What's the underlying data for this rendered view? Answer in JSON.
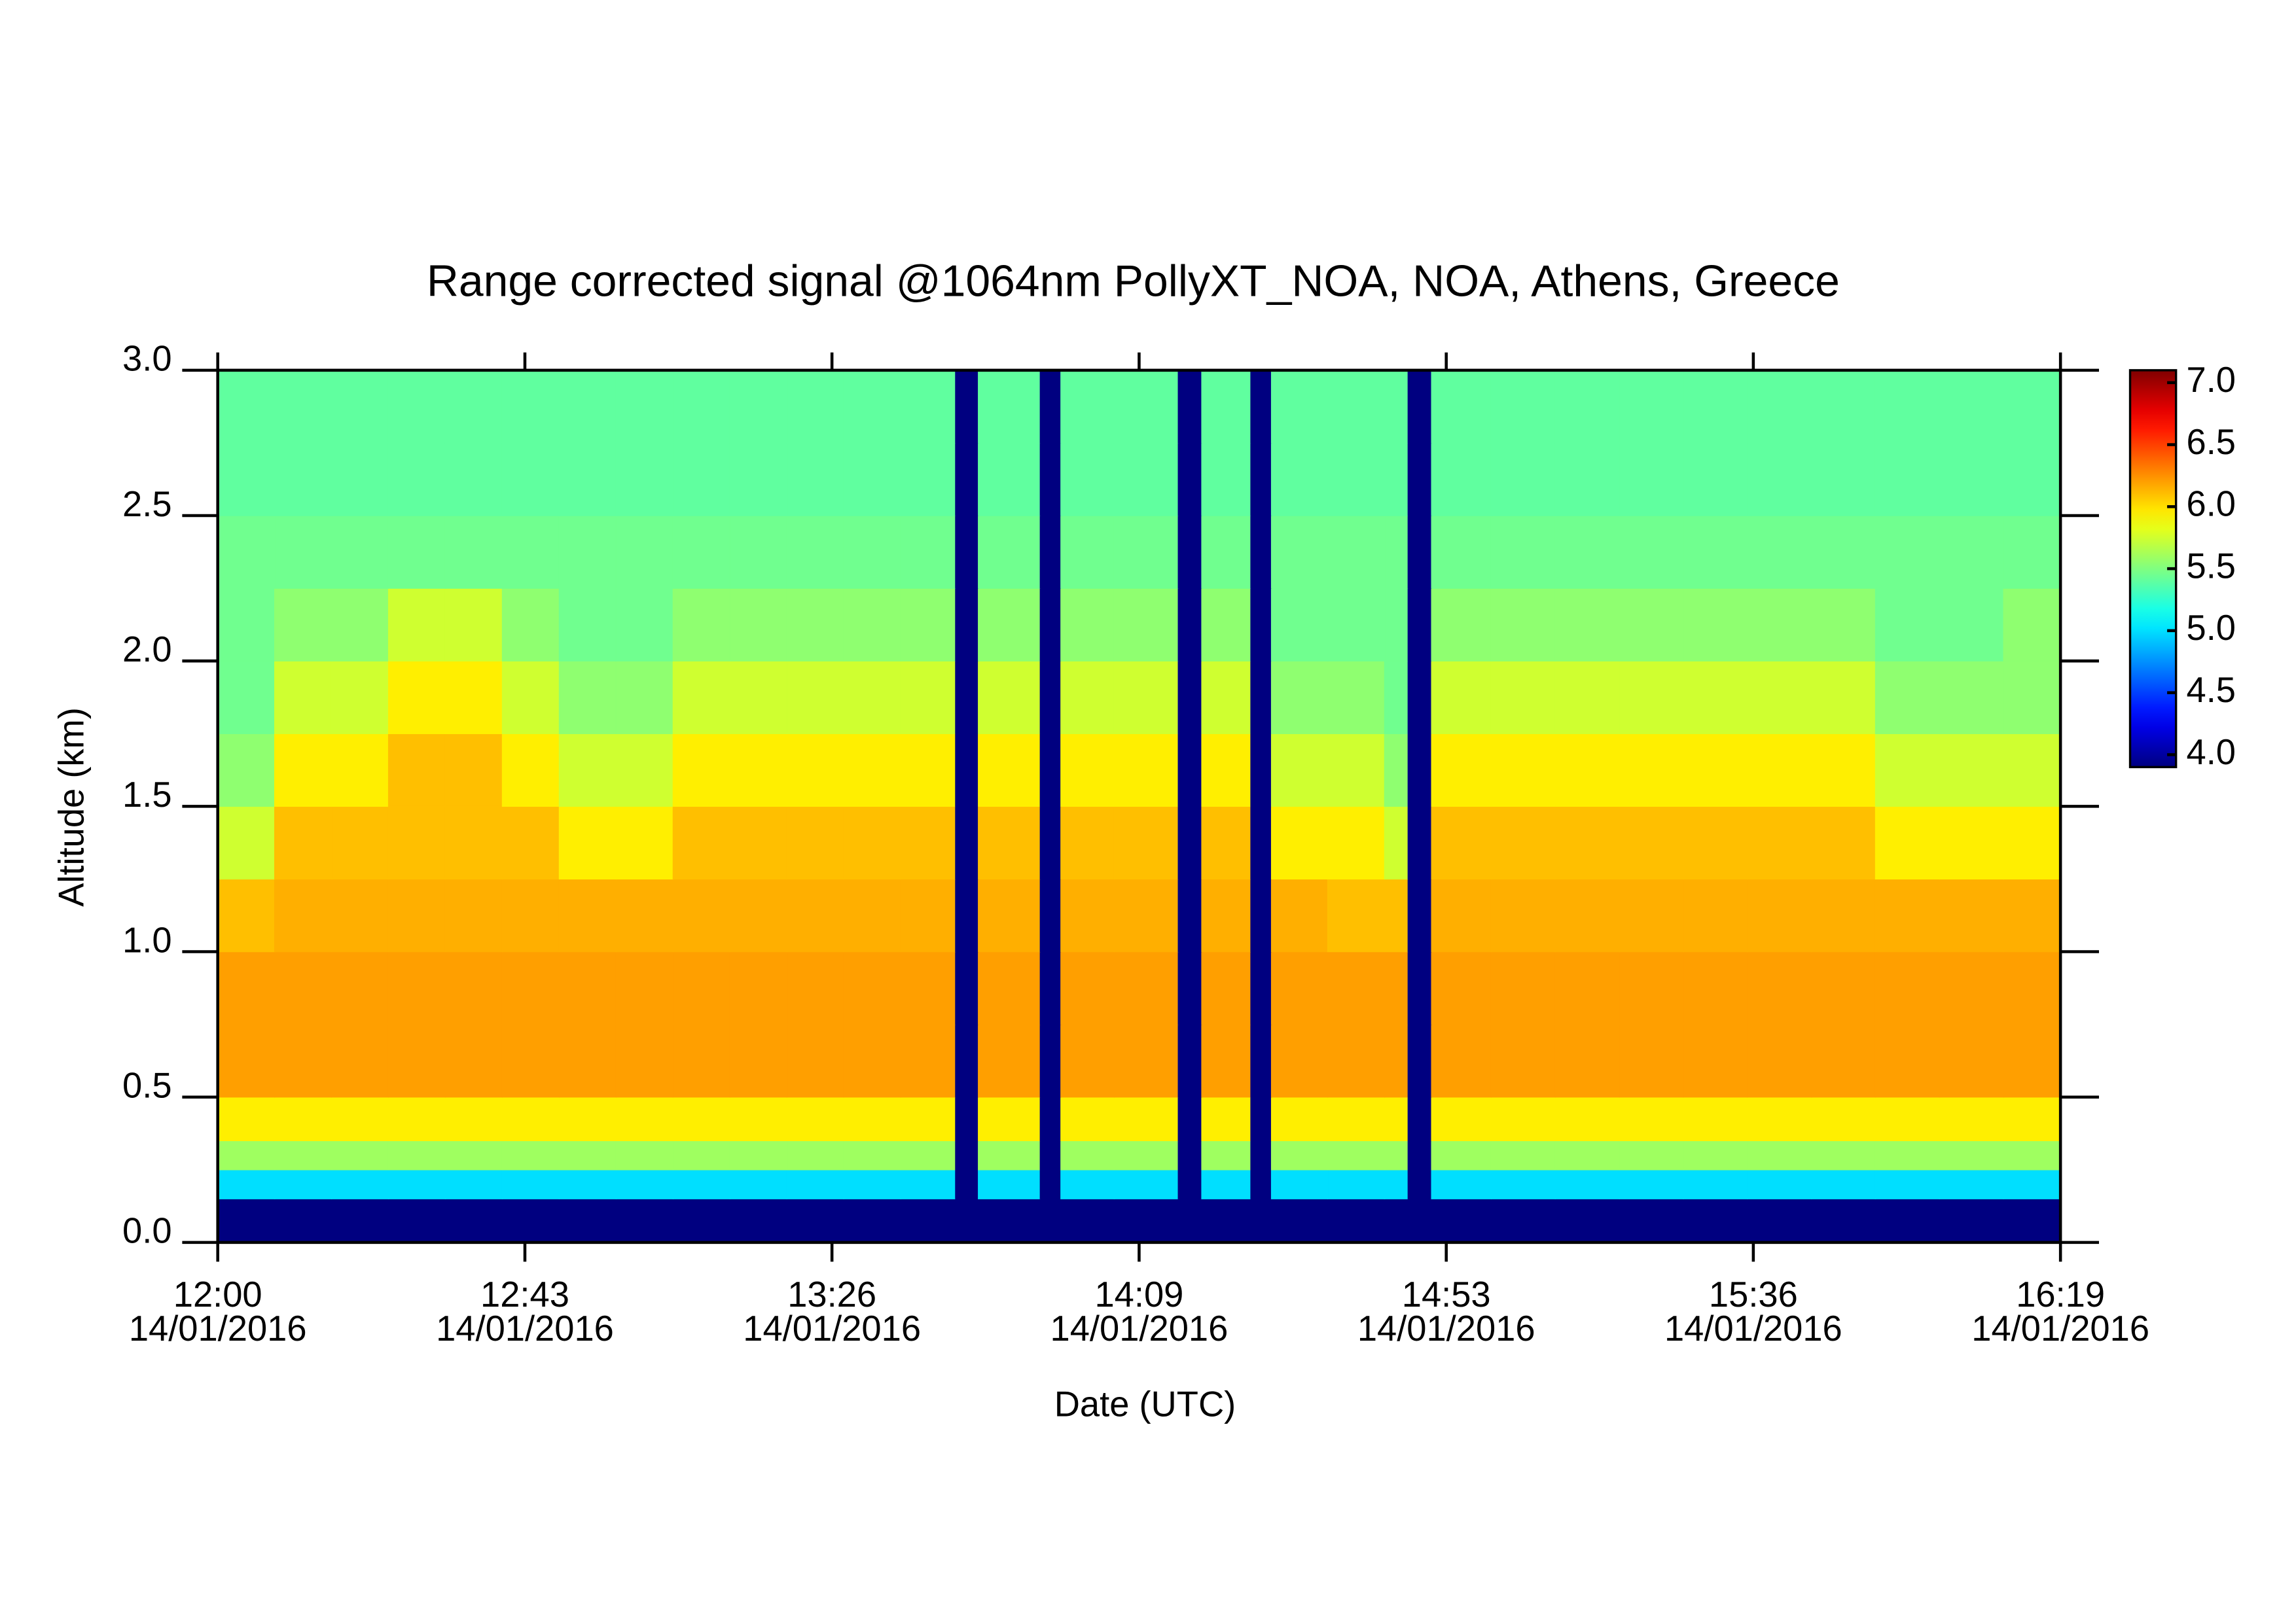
{
  "chart_data": {
    "type": "heatmap",
    "title": "Range corrected signal @1064nm  PollyXT_NOA, NOA, Athens, Greece",
    "xlabel": "Date (UTC)",
    "ylabel": "Altitude (km)",
    "colormap": "jet",
    "xlim": [
      0,
      259
    ],
    "ylim": [
      0,
      3.0
    ],
    "zlim": [
      3.9,
      7.1
    ],
    "xticks": [
      {
        "value": 0,
        "label": [
          "12:00",
          "14/01/2016"
        ]
      },
      {
        "value": 43.17,
        "label": [
          "12:43",
          "14/01/2016"
        ]
      },
      {
        "value": 86.33,
        "label": [
          "13:26",
          "14/01/2016"
        ]
      },
      {
        "value": 129.5,
        "label": [
          "14:09",
          "14/01/2016"
        ]
      },
      {
        "value": 172.67,
        "label": [
          "14:53",
          "14/01/2016"
        ]
      },
      {
        "value": 215.83,
        "label": [
          "15:36",
          "14/01/2016"
        ]
      },
      {
        "value": 259,
        "label": [
          "16:19",
          "14/01/2016"
        ]
      }
    ],
    "yticks": [
      {
        "value": 0,
        "label": "0.0"
      },
      0.5,
      {
        "value": 1,
        "label": "1.0"
      },
      1.5,
      {
        "value": 2,
        "label": "2.0"
      },
      2.5,
      {
        "value": 3,
        "label": "3.0"
      }
    ],
    "zticks": [
      {
        "value": 4,
        "label": "4.0"
      },
      4.5,
      {
        "value": 5,
        "label": "5.0"
      },
      5.5,
      {
        "value": 6,
        "label": "6.0"
      },
      6.5,
      {
        "value": 7,
        "label": "7.0"
      }
    ],
    "x_edges": [
      0,
      8,
      16,
      24,
      32,
      40,
      48,
      56,
      64,
      72,
      80,
      88,
      96,
      103.7,
      106.9,
      115.6,
      118.5,
      126,
      135,
      138.3,
      145.2,
      148.1,
      156,
      164,
      167.3,
      170.6,
      179,
      188,
      197,
      206,
      215,
      224,
      233,
      242,
      251,
      259
    ],
    "y_edges": [
      0,
      0.15,
      0.25,
      0.35,
      0.5,
      0.75,
      1.0,
      1.25,
      1.5,
      1.75,
      2.0,
      2.25,
      2.5,
      2.75,
      3.0
    ],
    "z": [
      [
        3.9,
        3.9,
        3.9,
        3.9,
        3.9,
        3.9,
        3.9,
        3.9,
        3.9,
        3.9,
        3.9,
        3.9,
        3.9,
        3.9,
        3.9,
        3.9,
        3.9,
        3.9,
        3.9,
        3.9,
        3.9,
        3.9,
        3.9,
        3.9,
        3.9,
        3.9,
        3.9,
        3.9,
        3.9,
        3.9,
        3.9,
        3.9,
        3.9,
        3.9,
        3.9
      ],
      [
        5.0,
        5.0,
        5.0,
        5.0,
        5.0,
        5.0,
        5.0,
        5.0,
        5.0,
        5.0,
        5.0,
        5.0,
        5.0,
        3.9,
        5.0,
        3.9,
        5.0,
        5.0,
        3.9,
        5.0,
        3.9,
        5.0,
        5.0,
        5.0,
        3.9,
        5.0,
        5.0,
        5.0,
        5.0,
        5.0,
        5.0,
        5.0,
        5.0,
        5.0,
        5.0
      ],
      [
        5.6,
        5.6,
        5.6,
        5.6,
        5.6,
        5.6,
        5.6,
        5.6,
        5.6,
        5.6,
        5.6,
        5.6,
        5.6,
        3.9,
        5.6,
        3.9,
        5.6,
        5.6,
        3.9,
        5.6,
        3.9,
        5.6,
        5.6,
        5.6,
        3.9,
        5.6,
        5.6,
        5.6,
        5.6,
        5.6,
        5.6,
        5.6,
        5.6,
        5.6,
        5.6
      ],
      [
        5.95,
        5.95,
        5.95,
        5.95,
        5.95,
        5.95,
        5.95,
        5.95,
        5.95,
        5.95,
        5.95,
        5.95,
        5.95,
        3.9,
        5.95,
        3.9,
        5.95,
        5.95,
        3.9,
        5.95,
        3.9,
        5.95,
        5.95,
        5.95,
        3.9,
        5.95,
        5.95,
        5.95,
        5.95,
        5.95,
        5.95,
        5.95,
        5.95,
        5.95,
        5.95
      ],
      [
        6.2,
        6.2,
        6.2,
        6.2,
        6.2,
        6.2,
        6.2,
        6.2,
        6.2,
        6.2,
        6.2,
        6.2,
        6.2,
        3.9,
        6.2,
        3.9,
        6.2,
        6.2,
        3.9,
        6.2,
        3.9,
        6.2,
        6.2,
        6.2,
        3.9,
        6.2,
        6.2,
        6.2,
        6.2,
        6.2,
        6.2,
        6.2,
        6.2,
        6.2,
        6.2
      ],
      [
        6.2,
        6.2,
        6.2,
        6.2,
        6.2,
        6.2,
        6.2,
        6.2,
        6.2,
        6.2,
        6.2,
        6.2,
        6.2,
        3.9,
        6.2,
        3.9,
        6.2,
        6.2,
        3.9,
        6.2,
        3.9,
        6.2,
        6.2,
        6.2,
        3.9,
        6.2,
        6.2,
        6.2,
        6.2,
        6.2,
        6.2,
        6.2,
        6.2,
        6.2,
        6.2
      ],
      [
        6.1,
        6.15,
        6.15,
        6.15,
        6.15,
        6.15,
        6.15,
        6.15,
        6.15,
        6.15,
        6.15,
        6.15,
        6.15,
        3.9,
        6.15,
        3.9,
        6.15,
        6.15,
        3.9,
        6.15,
        3.9,
        6.15,
        6.1,
        6.1,
        3.9,
        6.15,
        6.15,
        6.15,
        6.15,
        6.15,
        6.15,
        6.15,
        6.15,
        6.15,
        6.15
      ],
      [
        5.75,
        6.1,
        6.1,
        6.1,
        6.1,
        6.1,
        5.95,
        5.95,
        6.1,
        6.1,
        6.1,
        6.1,
        6.1,
        3.9,
        6.1,
        3.9,
        6.1,
        6.1,
        3.9,
        6.1,
        3.9,
        5.95,
        5.95,
        5.75,
        3.9,
        6.1,
        6.1,
        6.1,
        6.1,
        6.1,
        6.1,
        6.1,
        5.95,
        5.95,
        5.95
      ],
      [
        5.55,
        5.95,
        5.95,
        6.1,
        6.1,
        5.95,
        5.75,
        5.75,
        5.95,
        5.95,
        5.95,
        5.95,
        5.95,
        3.9,
        5.95,
        3.9,
        5.95,
        5.95,
        3.9,
        5.95,
        3.9,
        5.75,
        5.75,
        5.55,
        3.9,
        5.95,
        5.95,
        5.95,
        5.95,
        5.95,
        5.95,
        5.95,
        5.75,
        5.75,
        5.75
      ],
      [
        5.45,
        5.75,
        5.75,
        5.95,
        5.95,
        5.75,
        5.55,
        5.55,
        5.75,
        5.75,
        5.75,
        5.75,
        5.75,
        3.9,
        5.75,
        3.9,
        5.75,
        5.75,
        3.9,
        5.75,
        3.9,
        5.55,
        5.55,
        5.45,
        3.9,
        5.75,
        5.75,
        5.75,
        5.75,
        5.75,
        5.75,
        5.75,
        5.55,
        5.55,
        5.55
      ],
      [
        5.45,
        5.55,
        5.55,
        5.75,
        5.75,
        5.55,
        5.45,
        5.45,
        5.55,
        5.55,
        5.55,
        5.55,
        5.55,
        3.9,
        5.55,
        3.9,
        5.55,
        5.55,
        3.9,
        5.55,
        3.9,
        5.45,
        5.45,
        5.45,
        3.9,
        5.55,
        5.55,
        5.55,
        5.55,
        5.55,
        5.55,
        5.55,
        5.45,
        5.45,
        5.55
      ],
      [
        5.45,
        5.45,
        5.45,
        5.45,
        5.45,
        5.45,
        5.45,
        5.45,
        5.45,
        5.45,
        5.45,
        5.45,
        5.45,
        3.9,
        5.45,
        3.9,
        5.45,
        5.45,
        3.9,
        5.45,
        3.9,
        5.45,
        5.45,
        5.45,
        3.9,
        5.45,
        5.45,
        5.45,
        5.45,
        5.45,
        5.45,
        5.45,
        5.45,
        5.45,
        5.45
      ],
      [
        5.4,
        5.4,
        5.4,
        5.4,
        5.4,
        5.4,
        5.4,
        5.4,
        5.4,
        5.4,
        5.4,
        5.4,
        5.4,
        3.9,
        5.4,
        3.9,
        5.4,
        5.4,
        3.9,
        5.4,
        3.9,
        5.4,
        5.4,
        5.4,
        3.9,
        5.4,
        5.4,
        5.4,
        5.4,
        5.4,
        5.4,
        5.4,
        5.4,
        5.4,
        5.4
      ],
      [
        5.4,
        5.4,
        5.4,
        5.4,
        5.4,
        5.4,
        5.4,
        5.4,
        5.4,
        5.4,
        5.4,
        5.4,
        5.4,
        3.9,
        5.4,
        3.9,
        5.4,
        5.4,
        3.9,
        5.4,
        3.9,
        5.4,
        5.4,
        5.4,
        3.9,
        5.4,
        5.4,
        5.4,
        5.4,
        5.4,
        5.4,
        5.4,
        5.4,
        5.4,
        5.4
      ]
    ]
  }
}
